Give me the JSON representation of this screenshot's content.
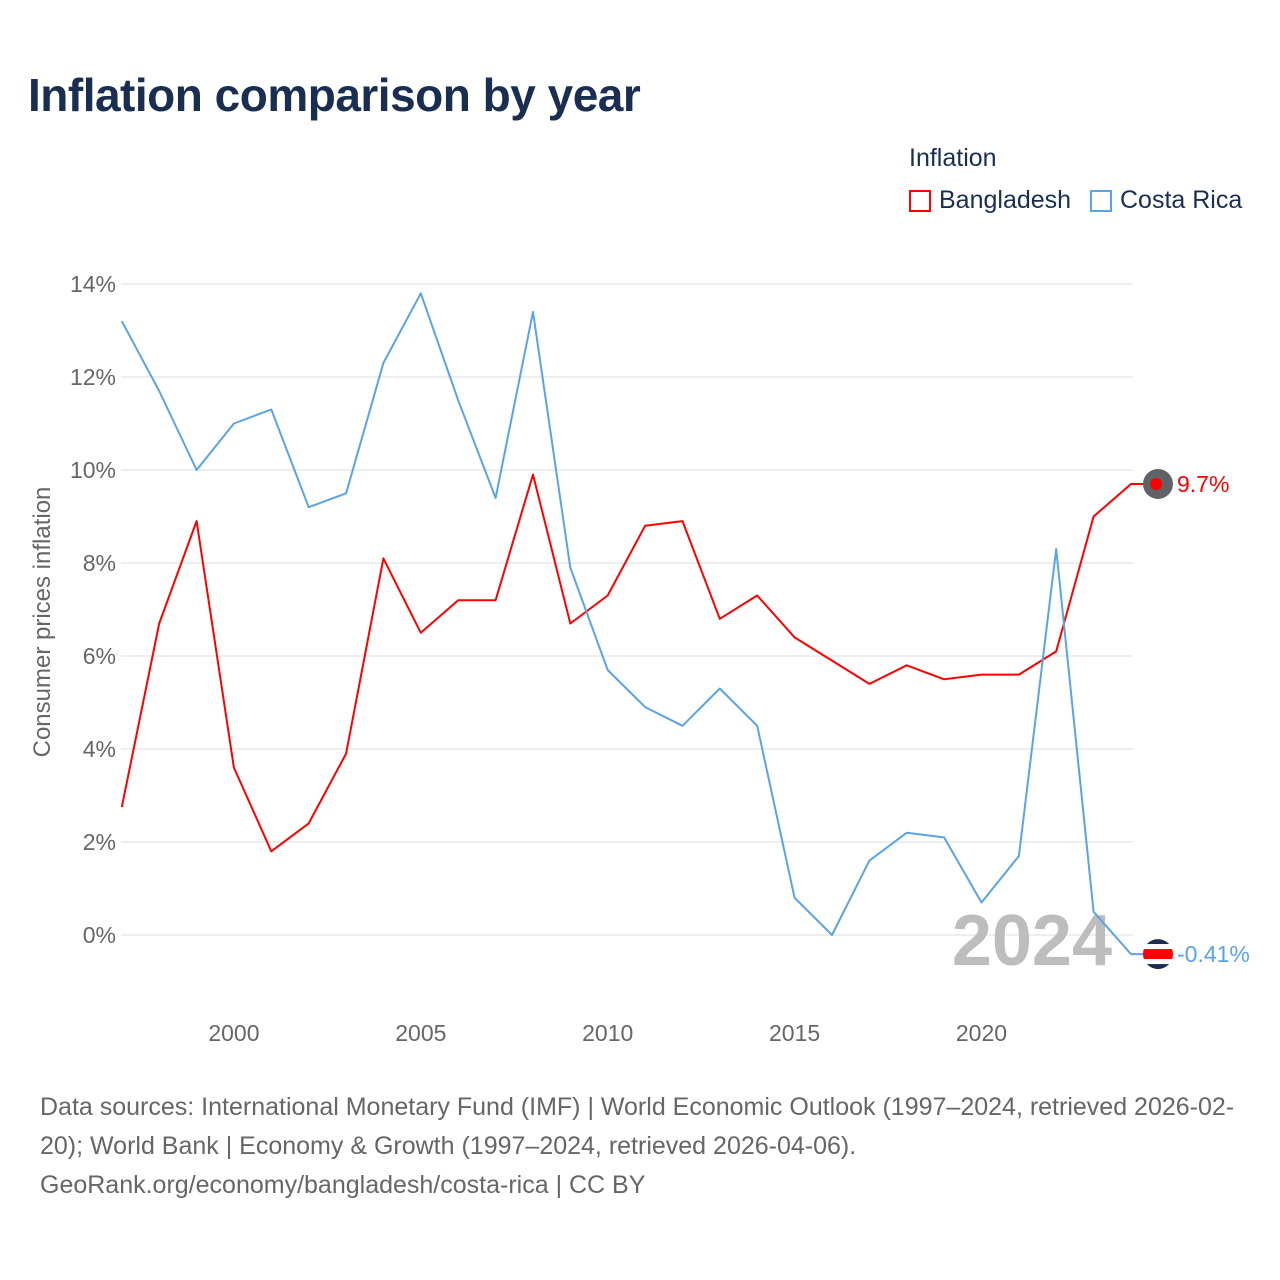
{
  "chart_data": {
    "type": "line",
    "title": "Inflation comparison by year",
    "ylabel": "Consumer prices inflation",
    "xlabel": "",
    "x": [
      1997,
      1998,
      1999,
      2000,
      2001,
      2002,
      2003,
      2004,
      2005,
      2006,
      2007,
      2008,
      2009,
      2010,
      2011,
      2012,
      2013,
      2014,
      2015,
      2016,
      2017,
      2018,
      2019,
      2020,
      2021,
      2022,
      2023,
      2024
    ],
    "xlim": [
      1997,
      2024
    ],
    "ylim": [
      -1.5,
      14.5
    ],
    "x_ticks": [
      2000,
      2005,
      2010,
      2015,
      2020
    ],
    "x_tick_labels": [
      "2000",
      "2005",
      "2010",
      "2015",
      "2020"
    ],
    "y_ticks": [
      0,
      2,
      4,
      6,
      8,
      10,
      12,
      14
    ],
    "y_tick_labels": [
      "0%",
      "2%",
      "4%",
      "6%",
      "8%",
      "10%",
      "12%",
      "14%"
    ],
    "grid": true,
    "legend": {
      "title": "Inflation",
      "placement": "top-right"
    },
    "year_watermark": "2024",
    "series": [
      {
        "name": "Bangladesh",
        "color": "#ff0000",
        "end_label": "9.7%",
        "flag": "bangladesh-flag",
        "values": [
          2.75,
          6.7,
          8.9,
          3.6,
          1.8,
          2.4,
          3.9,
          8.1,
          6.5,
          7.2,
          7.2,
          9.9,
          6.7,
          7.3,
          8.8,
          8.9,
          6.8,
          7.3,
          6.4,
          5.9,
          5.4,
          5.8,
          5.5,
          5.6,
          5.6,
          6.1,
          9.0,
          9.7
        ]
      },
      {
        "name": "Costa Rica",
        "color": "#5ba3e8",
        "end_label": "-0.41%",
        "flag": "costa-rica-flag",
        "values": [
          13.2,
          11.7,
          10.0,
          11.0,
          11.3,
          9.2,
          9.5,
          12.3,
          13.8,
          11.5,
          9.4,
          13.4,
          7.9,
          5.7,
          4.9,
          4.5,
          5.3,
          4.5,
          0.8,
          0.0,
          1.6,
          2.2,
          2.1,
          0.7,
          1.7,
          8.3,
          0.5,
          -0.41
        ]
      }
    ]
  },
  "sources": {
    "line1": "Data sources: International Monetary Fund (IMF) | World Economic Outlook (1997–2024, retrieved 2026-02-20); World Bank | Economy & Growth (1997–2024, retrieved 2026-04-06).",
    "line2": "GeoRank.org/economy/bangladesh/costa-rica | CC BY"
  }
}
